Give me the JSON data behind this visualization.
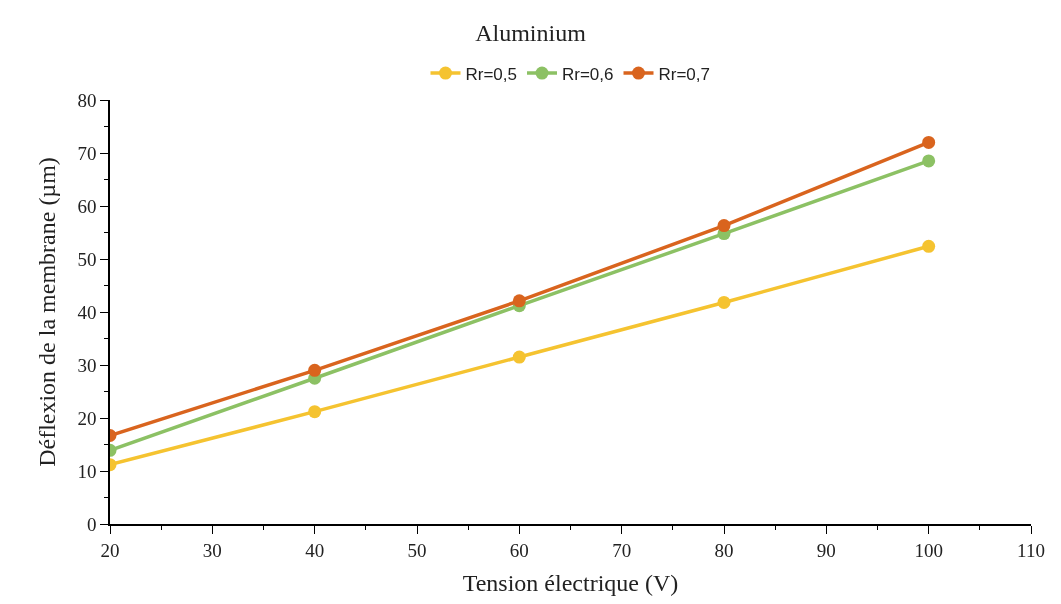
{
  "chart_data": {
    "type": "line",
    "title": "Aluminium",
    "xlabel": "Tension électrique (V)",
    "ylabel": "Déflexion de la membrane (µm)",
    "x": [
      20,
      40,
      60,
      80,
      100
    ],
    "series": [
      {
        "name": "Rr=0,5",
        "color": "#f5c330",
        "values": [
          11.2,
          21.2,
          31.5,
          41.8,
          52.4
        ]
      },
      {
        "name": "Rr=0,6",
        "color": "#8cc164",
        "values": [
          13.9,
          27.5,
          41.2,
          54.8,
          68.5
        ]
      },
      {
        "name": "Rr=0,7",
        "color": "#d9641e",
        "values": [
          16.7,
          29.0,
          42.1,
          56.3,
          72.0
        ]
      }
    ],
    "xlim": [
      20,
      110
    ],
    "xticks": [
      20,
      30,
      40,
      50,
      60,
      70,
      80,
      90,
      100,
      110
    ],
    "ylim": [
      0,
      80
    ],
    "yticks": [
      0,
      10,
      20,
      30,
      40,
      50,
      60,
      70,
      80
    ],
    "legend": "top",
    "marker": "circle",
    "line_style": "solid"
  }
}
